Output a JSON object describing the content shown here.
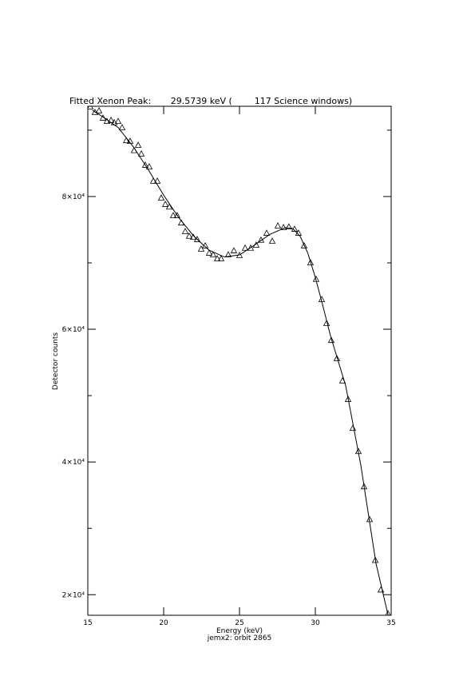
{
  "chart_data": {
    "type": "scatter",
    "title": "Fitted Xenon Peak:       29.5739 keV (        117 Science windows)",
    "x_label": "Energy (keV)",
    "y_label": "Detector counts",
    "subtitle": "jemx2: orbit 2865",
    "xlim": [
      15,
      35
    ],
    "ylim": [
      16900,
      93600
    ],
    "xticks": [
      15,
      20,
      25,
      30,
      35
    ],
    "yticks": [
      {
        "value": 20000,
        "label": "2×10⁴"
      },
      {
        "value": 40000,
        "label": "4×10⁴"
      },
      {
        "value": 60000,
        "label": "6×10⁴"
      },
      {
        "value": 80000,
        "label": "8×10⁴"
      }
    ],
    "yminorticks": [
      30000,
      50000,
      70000,
      90000
    ],
    "color": "#000000",
    "series": [
      {
        "marker": "triangle",
        "x": [
          15.16,
          15.47,
          15.74,
          16.0,
          16.26,
          16.53,
          16.74,
          17.0,
          17.26,
          17.53,
          17.79,
          18.05,
          18.32,
          18.53,
          18.79,
          19.05,
          19.32,
          19.58,
          19.84,
          20.11,
          20.37,
          20.63,
          20.89,
          21.16,
          21.42,
          21.68,
          21.95,
          22.21,
          22.47,
          22.74,
          23.0,
          23.26,
          23.53,
          23.79,
          24.26,
          24.63,
          25.0,
          25.37,
          25.74,
          26.1,
          26.42,
          26.79,
          27.16,
          27.53,
          27.9,
          28.26,
          28.63,
          28.89,
          29.26,
          29.68,
          30.05,
          30.42,
          30.74,
          31.05,
          31.42,
          31.79,
          32.16,
          32.47,
          32.84,
          33.21,
          33.58,
          33.95,
          34.32,
          34.79
        ],
        "values": [
          93500,
          92650,
          92900,
          91800,
          91300,
          91450,
          91100,
          91300,
          90350,
          88400,
          88300,
          86900,
          87700,
          86400,
          84700,
          84450,
          82300,
          82300,
          79750,
          78800,
          78400,
          77100,
          77100,
          76000,
          74700,
          74000,
          73850,
          73500,
          72050,
          72550,
          71450,
          71200,
          70600,
          70600,
          71200,
          71800,
          71100,
          72200,
          72200,
          72650,
          73400,
          74450,
          73250,
          75550,
          75300,
          75400,
          75050,
          74450,
          72550,
          70000,
          67500,
          64450,
          60850,
          58300,
          55550,
          52200,
          49400,
          45050,
          41550,
          36250,
          31300,
          25150,
          20700,
          17100
        ]
      },
      {
        "marker": "line",
        "x": [
          15.3,
          16,
          17,
          18,
          19,
          20,
          21,
          22,
          23,
          24,
          25,
          26,
          27,
          28,
          28.5,
          29,
          29.5,
          30,
          30.5,
          31,
          32,
          33,
          34,
          34.8
        ],
        "values": [
          93000,
          92000,
          90400,
          87500,
          84000,
          80200,
          76800,
          74000,
          71900,
          70900,
          71200,
          72700,
          74300,
          75300,
          75200,
          74000,
          71500,
          67800,
          63500,
          59000,
          51500,
          39500,
          24700,
          16900
        ]
      }
    ]
  }
}
